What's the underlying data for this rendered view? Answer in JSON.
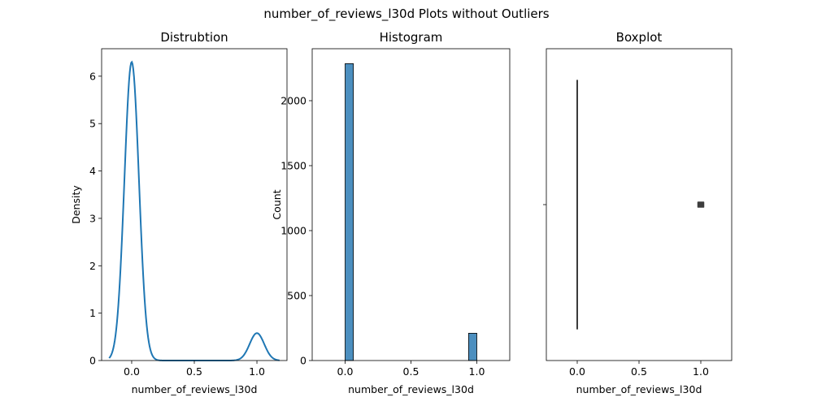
{
  "figure": {
    "suptitle": "number_of_reviews_l30d Plots without Outliers",
    "colors": {
      "kde": "#1f77b4",
      "hist": "#4c8fbf",
      "box_line": "#3b3b3b",
      "flier": "#3d3d3d"
    }
  },
  "chart_data": [
    {
      "type": "line",
      "title": "Distrubtion",
      "xlabel": "number_of_reviews_l30d",
      "ylabel": "Density",
      "xlim": [
        -0.24,
        1.24
      ],
      "ylim": [
        0,
        6.58
      ],
      "xticks": [
        0.0,
        0.5,
        1.0
      ],
      "xtick_labels": [
        "0.0",
        "0.5",
        "1.0"
      ],
      "yticks": [
        0,
        1,
        2,
        3,
        4,
        5,
        6
      ],
      "ytick_labels": [
        "0",
        "1",
        "2",
        "3",
        "4",
        "5",
        "6"
      ],
      "kde": {
        "components": [
          {
            "mean": 0,
            "weight": 0.916,
            "sd": 0.058
          },
          {
            "mean": 1,
            "weight": 0.084,
            "sd": 0.058
          }
        ],
        "x_range": [
          -0.18,
          1.18
        ]
      }
    },
    {
      "type": "bar",
      "title": "Histogram",
      "xlabel": "number_of_reviews_l30d",
      "ylabel": "Count",
      "xlim": [
        -0.25,
        1.25
      ],
      "ylim": [
        0,
        2400
      ],
      "xticks": [
        0.0,
        0.5,
        1.0
      ],
      "xtick_labels": [
        "0.0",
        "0.5",
        "1.0"
      ],
      "yticks": [
        0,
        500,
        1000,
        1500,
        2000
      ],
      "ytick_labels": [
        "0",
        "500",
        "1000",
        "1500",
        "2000"
      ],
      "bars": [
        {
          "x0": 0.0,
          "x1": 0.0625,
          "count": 2285
        },
        {
          "x0": 0.9375,
          "x1": 1.0,
          "count": 210
        }
      ]
    },
    {
      "type": "box",
      "title": "Boxplot",
      "xlabel": "number_of_reviews_l30d",
      "xlim": [
        -0.25,
        1.25
      ],
      "xticks": [
        0.0,
        0.5,
        1.0
      ],
      "xtick_labels": [
        "0.0",
        "0.5",
        "1.0"
      ],
      "box": {
        "min": 0,
        "q1": 0,
        "median": 0,
        "q3": 0,
        "max": 0,
        "outliers": [
          1
        ]
      }
    }
  ]
}
